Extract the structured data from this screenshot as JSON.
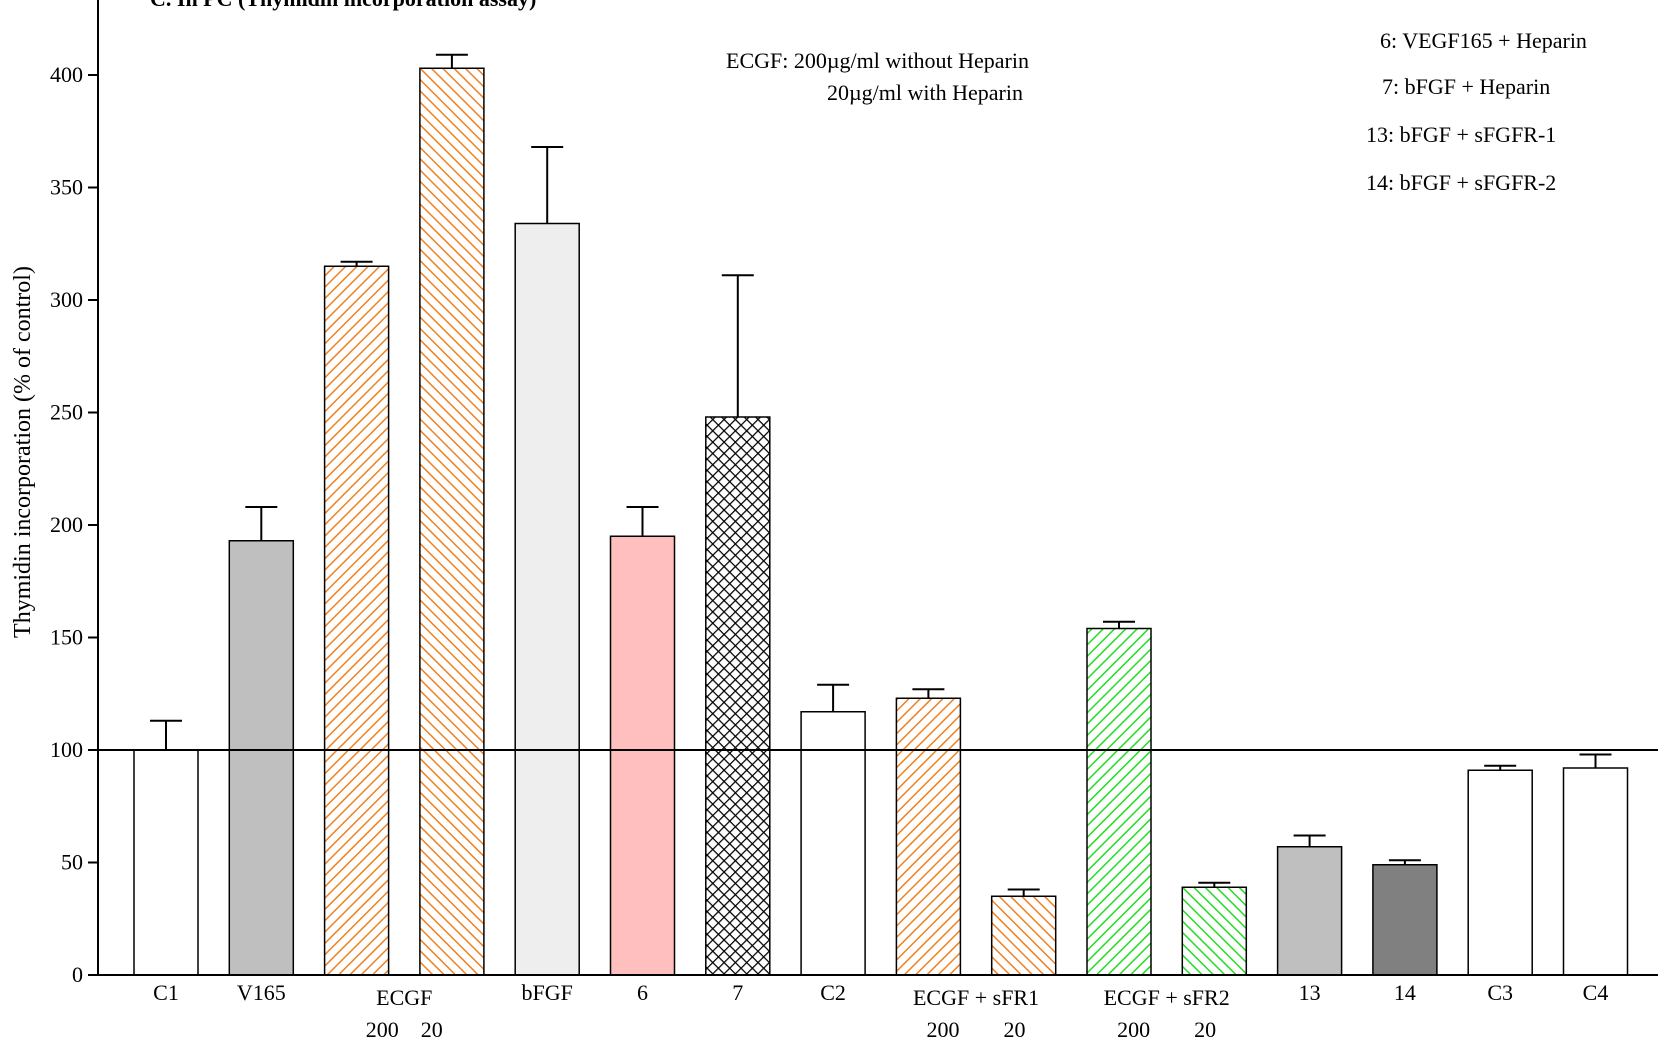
{
  "chart_data": {
    "type": "bar",
    "title_fragment": "C. In PC (Thymidin incorporation assay)",
    "ylabel": "Thymidin incorporation (% of control)",
    "xlabel": "",
    "ylim": [
      0,
      420
    ],
    "yticks": [
      0,
      50,
      100,
      150,
      200,
      250,
      300,
      350,
      400
    ],
    "reference_line": 100,
    "categories": [
      "C1",
      "V165",
      "ECGF 200",
      "ECGF 20",
      "bFGF",
      "6",
      "7",
      "C2",
      "ECGF + sFR1 200",
      "ECGF + sFR1 20",
      "ECGF + sFR2 200",
      "ECGF + sFR2 20",
      "13",
      "14",
      "C3",
      "C4"
    ],
    "values": [
      100,
      193,
      315,
      403,
      334,
      195,
      248,
      117,
      123,
      35,
      154,
      39,
      57,
      49,
      91,
      92
    ],
    "errors": [
      13,
      15,
      2,
      6,
      34,
      13,
      63,
      12,
      4,
      3,
      3,
      2,
      5,
      2,
      2,
      6
    ],
    "fills": [
      "white",
      "#bfbfbf",
      "hatch-orange-fwd",
      "hatch-orange-back",
      "#eeeeee",
      "#ffbfbf",
      "crosshatch-black",
      "white",
      "hatch-orange-fwd",
      "hatch-orange-back",
      "hatch-green-fwd",
      "hatch-green-back",
      "#bfbfbf",
      "#808080",
      "white",
      "white"
    ],
    "x_labels": [
      {
        "text": "C1",
        "line2": ""
      },
      {
        "text": "V165",
        "line2": ""
      },
      {
        "text": "ECGF",
        "line2": "200    20"
      },
      {
        "text": "bFGF",
        "line2": ""
      },
      {
        "text": "6",
        "line2": ""
      },
      {
        "text": "7",
        "line2": ""
      },
      {
        "text": "C2",
        "line2": ""
      },
      {
        "text": "ECGF + sFR1",
        "line2": "200        20"
      },
      {
        "text": "ECGF + sFR2",
        "line2": "200        20"
      },
      {
        "text": "13",
        "line2": ""
      },
      {
        "text": "14",
        "line2": ""
      },
      {
        "text": "C3",
        "line2": ""
      },
      {
        "text": "C4",
        "line2": ""
      }
    ],
    "annotations": {
      "ecgf_line1": "ECGF: 200µg/ml without Heparin",
      "ecgf_line2": "20µg/ml with Heparin",
      "legend": [
        "6: VEGF165 + Heparin",
        "7: bFGF + Heparin",
        "13: bFGF + sFGFR-1",
        "14: bFGF + sFGFR-2"
      ]
    },
    "colors": {
      "orange_hatch": "#f08020",
      "green_hatch": "#22dd22",
      "axis": "#000000"
    }
  }
}
